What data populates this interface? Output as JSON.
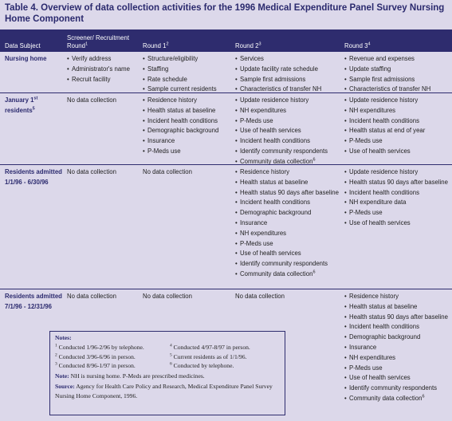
{
  "header": {
    "title": "Table 4.  Overview of data collection activities for the 1996 Medical Expenditure Panel Survey Nursing Home Component"
  },
  "table": {
    "columns": [
      [
        "Data Subject"
      ],
      [
        "Screener/ Recruitment Round",
        {
          "sup": "1"
        }
      ],
      [
        "Round 1",
        {
          "sup": "2"
        }
      ],
      [
        "Round 2",
        {
          "sup": "3"
        }
      ],
      [
        "Round 3",
        {
          "sup": "4"
        }
      ]
    ],
    "rows": [
      {
        "subject": [
          "Nursing home"
        ],
        "cells": [
          [
            "Verify address",
            "Administrator's name",
            "Recruit facility"
          ],
          [
            "Structure/eligibility",
            "Staffing",
            "Rate schedule",
            "Sample current residents"
          ],
          [
            "Services",
            "Update facility rate schedule",
            "Sample first admissions",
            "Characteristics of transfer NH"
          ],
          [
            "Revenue and expenses",
            "Update staffing",
            "Sample first admissions",
            "Characteristics of transfer NH"
          ]
        ]
      },
      {
        "subject": [
          "January 1",
          {
            "sup": "st"
          },
          " residents",
          {
            "sup": "5"
          }
        ],
        "cells": [
          "No data collection",
          [
            "Residence history",
            "Health status at baseline",
            "Incident health conditions",
            "Demographic background",
            "Insurance",
            "P-Meds use"
          ],
          [
            "Update residence history",
            "NH expenditures",
            "P-Meds use",
            "Use of health services",
            "Incident health conditions",
            "Identify community respondents",
            [
              "Community data collection",
              {
                "sup": "6"
              }
            ]
          ],
          [
            "Update residence history",
            "NH expenditures",
            "Incident health conditions",
            "Health status at end of year",
            "P-Meds use",
            "Use of health services"
          ]
        ]
      },
      {
        "subject": [
          "Residents admitted 1/1/96 - 6/30/96"
        ],
        "cells": [
          "No data collection",
          "No data collection",
          [
            "Residence history",
            "Health status at baseline",
            "Health status 90 days after baseline",
            "Incident health conditions",
            "Demographic background",
            "Insurance",
            "NH expenditures",
            "P-Meds use",
            "Use of health services",
            "Identify community respondents",
            [
              "Community data collection",
              {
                "sup": "6"
              }
            ]
          ],
          [
            "Update residence history",
            "Health status 90 days after baseline",
            "Incident health conditions",
            "NH expenditure data",
            "P-Meds use",
            "Use of health services"
          ]
        ]
      },
      {
        "subject": [
          "Residents admitted 7/1/96 - 12/31/96"
        ],
        "cells": [
          "No data collection",
          "No data collection",
          "No data collection",
          [
            "Residence history",
            "Health status at baseline",
            "Health status 90 days after baseline",
            "Incident health conditions",
            "Demographic background",
            "Insurance",
            "NH expenditures",
            "P-Meds use",
            "Use of health services",
            "Identify community respondents",
            [
              "Community data collection",
              {
                "sup": "6"
              }
            ]
          ]
        ]
      }
    ]
  },
  "notes": {
    "title": "Notes:",
    "items": [
      {
        "num": "1",
        "text": "Conducted 1/96-2/96 by telephone."
      },
      {
        "num": "2",
        "text": "Conducted 3/96-6/96 in person."
      },
      {
        "num": "3",
        "text": "Conducted 8/96-1/97 in person."
      },
      {
        "num": "4",
        "text": "Conducted 4/97-8/97 in person."
      },
      {
        "num": "5",
        "text": "Current residents as of 1/1/96."
      },
      {
        "num": "6",
        "text": "Conducted by telephone."
      }
    ],
    "note": {
      "label": "Note:",
      "text": "NH is nursing home. P-Meds are prescribed medicines."
    },
    "source": {
      "label": "Source:",
      "text": "Agency for Health Care Policy and Research, Medical Expenditure Panel Survey Nursing Home Component, 1996."
    }
  }
}
